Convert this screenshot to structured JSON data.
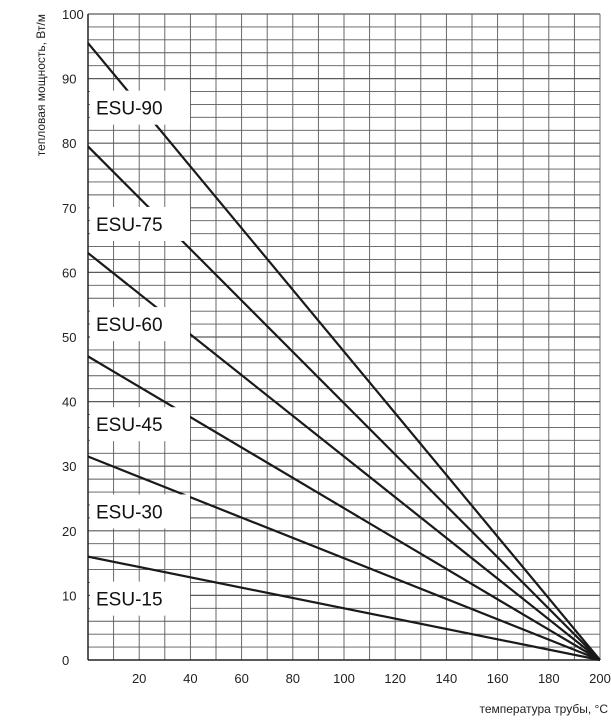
{
  "chart_data": {
    "type": "line",
    "xlabel": "температура трубы, °C",
    "ylabel": "тепловая мощность, Вт/м",
    "xlim": [
      0,
      200
    ],
    "ylim": [
      0,
      100
    ],
    "x_ticks": [
      "20",
      "40",
      "60",
      "80",
      "100",
      "120",
      "140",
      "160",
      "180",
      "200"
    ],
    "y_ticks": [
      "0",
      "10",
      "20",
      "30",
      "40",
      "50",
      "60",
      "70",
      "80",
      "90",
      "100"
    ],
    "grid": true,
    "series": [
      {
        "name": "ESU-90",
        "x": [
          0,
          200
        ],
        "y": [
          95.5,
          0
        ],
        "label_at": 85.5
      },
      {
        "name": "ESU-75",
        "x": [
          0,
          200
        ],
        "y": [
          79.5,
          0
        ],
        "label_at": 67.5
      },
      {
        "name": "ESU-60",
        "x": [
          0,
          200
        ],
        "y": [
          63,
          0
        ],
        "label_at": 52
      },
      {
        "name": "ESU-45",
        "x": [
          0,
          200
        ],
        "y": [
          47,
          0
        ],
        "label_at": 36.5
      },
      {
        "name": "ESU-30",
        "x": [
          0,
          200
        ],
        "y": [
          31.5,
          0
        ],
        "label_at": 23
      },
      {
        "name": "ESU-15",
        "x": [
          0,
          200
        ],
        "y": [
          16,
          0
        ],
        "label_at": 9.5
      }
    ]
  }
}
